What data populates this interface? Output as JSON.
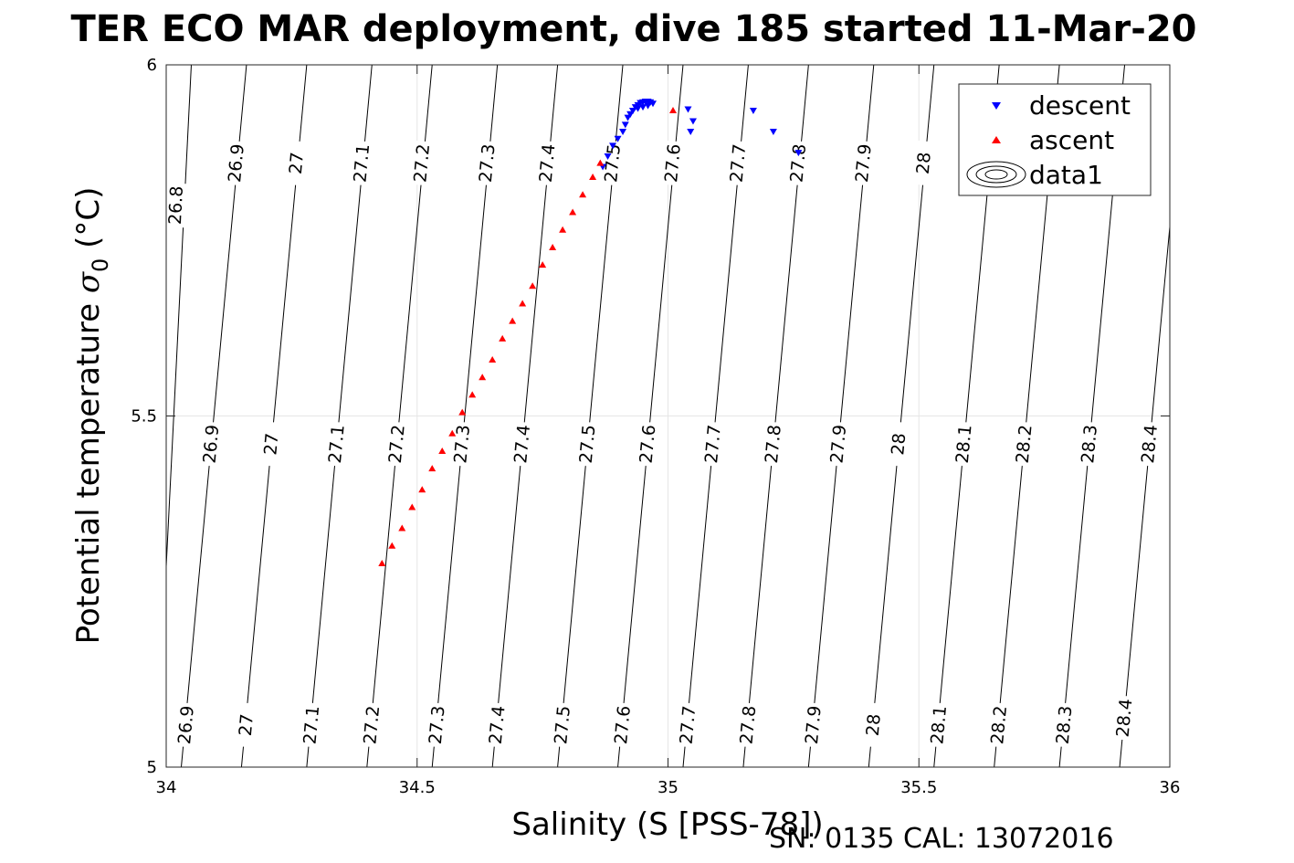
{
  "chart_data": {
    "type": "scatter",
    "title": "TER ECO MAR deployment, dive 185 started 11-Mar-20",
    "xlabel": "Salinity (S [PSS-78])",
    "ylabel": "Potential temperature σ 0 (°C)",
    "ylabel_main": "Potential temperature ",
    "ylabel_sigma": "σ",
    "ylabel_sub": "0",
    "ylabel_unit": " (°C)",
    "footer": "SN: 0135  CAL: 13072016",
    "xlim": [
      34,
      36
    ],
    "ylim": [
      5,
      6
    ],
    "xticks": [
      34,
      34.5,
      35,
      35.5,
      36
    ],
    "xtick_labels": [
      "34",
      "34.5",
      "35",
      "35.5",
      "36"
    ],
    "yticks": [
      5,
      5.5,
      6
    ],
    "ytick_labels": [
      "5",
      "5.5",
      "6"
    ],
    "grid": true,
    "legend_position": "top-right",
    "legend": [
      "descent",
      "ascent",
      "data1"
    ],
    "colors": {
      "descent": "#0000ff",
      "ascent": "#ff0000",
      "contour": "#000000",
      "grid": "#e6e6e6"
    },
    "contours": [
      {
        "level": 26.8,
        "s_bottom": 33.98,
        "s_top": 34.05,
        "labels": [
          {
            "s": 34.02,
            "t": 5.8,
            "text": "26.8"
          }
        ]
      },
      {
        "level": 26.9,
        "s_bottom": 34.03,
        "s_top": 34.16,
        "labels": [
          {
            "s": 34.04,
            "t": 5.06,
            "text": "26.9"
          },
          {
            "s": 34.09,
            "t": 5.46,
            "text": "26.9"
          },
          {
            "s": 34.14,
            "t": 5.86,
            "text": "26.9"
          }
        ]
      },
      {
        "level": 27.0,
        "s_bottom": 34.15,
        "s_top": 34.28,
        "labels": [
          {
            "s": 34.16,
            "t": 5.06,
            "text": "27"
          },
          {
            "s": 34.21,
            "t": 5.46,
            "text": "27"
          },
          {
            "s": 34.26,
            "t": 5.86,
            "text": "27"
          }
        ]
      },
      {
        "level": 27.1,
        "s_bottom": 34.28,
        "s_top": 34.41,
        "labels": [
          {
            "s": 34.29,
            "t": 5.06,
            "text": "27.1"
          },
          {
            "s": 34.34,
            "t": 5.46,
            "text": "27.1"
          },
          {
            "s": 34.39,
            "t": 5.86,
            "text": "27.1"
          }
        ]
      },
      {
        "level": 27.2,
        "s_bottom": 34.4,
        "s_top": 34.53,
        "labels": [
          {
            "s": 34.41,
            "t": 5.06,
            "text": "27.2"
          },
          {
            "s": 34.46,
            "t": 5.46,
            "text": "27.2"
          },
          {
            "s": 34.51,
            "t": 5.86,
            "text": "27.2"
          }
        ]
      },
      {
        "level": 27.3,
        "s_bottom": 34.53,
        "s_top": 34.66,
        "labels": [
          {
            "s": 34.54,
            "t": 5.06,
            "text": "27.3"
          },
          {
            "s": 34.59,
            "t": 5.46,
            "text": "27.3"
          },
          {
            "s": 34.64,
            "t": 5.86,
            "text": "27.3"
          }
        ]
      },
      {
        "level": 27.4,
        "s_bottom": 34.65,
        "s_top": 34.78,
        "labels": [
          {
            "s": 34.66,
            "t": 5.06,
            "text": "27.4"
          },
          {
            "s": 34.71,
            "t": 5.46,
            "text": "27.4"
          },
          {
            "s": 34.76,
            "t": 5.86,
            "text": "27.4"
          }
        ]
      },
      {
        "level": 27.5,
        "s_bottom": 34.78,
        "s_top": 34.91,
        "labels": [
          {
            "s": 34.79,
            "t": 5.06,
            "text": "27.5"
          },
          {
            "s": 34.84,
            "t": 5.46,
            "text": "27.5"
          },
          {
            "s": 34.89,
            "t": 5.86,
            "text": "27.5"
          }
        ]
      },
      {
        "level": 27.6,
        "s_bottom": 34.9,
        "s_top": 35.03,
        "labels": [
          {
            "s": 34.91,
            "t": 5.06,
            "text": "27.6"
          },
          {
            "s": 34.96,
            "t": 5.46,
            "text": "27.6"
          },
          {
            "s": 35.01,
            "t": 5.86,
            "text": "27.6"
          }
        ]
      },
      {
        "level": 27.7,
        "s_bottom": 35.03,
        "s_top": 35.16,
        "labels": [
          {
            "s": 35.04,
            "t": 5.06,
            "text": "27.7"
          },
          {
            "s": 35.09,
            "t": 5.46,
            "text": "27.7"
          },
          {
            "s": 35.14,
            "t": 5.86,
            "text": "27.7"
          }
        ]
      },
      {
        "level": 27.8,
        "s_bottom": 35.15,
        "s_top": 35.28,
        "labels": [
          {
            "s": 35.16,
            "t": 5.06,
            "text": "27.8"
          },
          {
            "s": 35.21,
            "t": 5.46,
            "text": "27.8"
          },
          {
            "s": 35.26,
            "t": 5.86,
            "text": "27.8"
          }
        ]
      },
      {
        "level": 27.9,
        "s_bottom": 35.28,
        "s_top": 35.41,
        "labels": [
          {
            "s": 35.29,
            "t": 5.06,
            "text": "27.9"
          },
          {
            "s": 35.34,
            "t": 5.46,
            "text": "27.9"
          },
          {
            "s": 35.39,
            "t": 5.86,
            "text": "27.9"
          }
        ]
      },
      {
        "level": 28.0,
        "s_bottom": 35.4,
        "s_top": 35.53,
        "labels": [
          {
            "s": 35.41,
            "t": 5.06,
            "text": "28"
          },
          {
            "s": 35.46,
            "t": 5.46,
            "text": "28"
          },
          {
            "s": 35.51,
            "t": 5.86,
            "text": "28"
          }
        ]
      },
      {
        "level": 28.1,
        "s_bottom": 35.53,
        "s_top": 35.66,
        "labels": [
          {
            "s": 35.54,
            "t": 5.06,
            "text": "28.1"
          },
          {
            "s": 35.59,
            "t": 5.46,
            "text": "28.1"
          }
        ]
      },
      {
        "level": 28.2,
        "s_bottom": 35.65,
        "s_top": 35.78,
        "labels": [
          {
            "s": 35.66,
            "t": 5.06,
            "text": "28.2"
          },
          {
            "s": 35.71,
            "t": 5.46,
            "text": "28.2"
          }
        ]
      },
      {
        "level": 28.3,
        "s_bottom": 35.78,
        "s_top": 35.91,
        "labels": [
          {
            "s": 35.79,
            "t": 5.06,
            "text": "28.3"
          },
          {
            "s": 35.84,
            "t": 5.46,
            "text": "28.3"
          }
        ]
      },
      {
        "level": 28.4,
        "s_bottom": 35.9,
        "s_top": 36.03,
        "labels": [
          {
            "s": 35.91,
            "t": 5.07,
            "text": "28.4"
          },
          {
            "s": 35.96,
            "t": 5.46,
            "text": "28.4"
          }
        ]
      }
    ],
    "series": [
      {
        "name": "descent",
        "marker": "triangle-down",
        "x": [
          34.87,
          34.88,
          34.89,
          34.9,
          34.91,
          34.915,
          34.92,
          34.925,
          34.93,
          34.935,
          34.94,
          34.945,
          34.95,
          34.955,
          34.96,
          34.965,
          34.97,
          34.925,
          34.93,
          34.94,
          34.95,
          34.96,
          35.04,
          35.045,
          35.05,
          35.17,
          35.21,
          35.26
        ],
        "y": [
          5.855,
          5.87,
          5.885,
          5.895,
          5.905,
          5.915,
          5.925,
          5.93,
          5.935,
          5.94,
          5.943,
          5.946,
          5.947,
          5.948,
          5.948,
          5.947,
          5.945,
          5.93,
          5.935,
          5.938,
          5.94,
          5.942,
          5.937,
          5.905,
          5.92,
          5.935,
          5.905,
          5.875
        ]
      },
      {
        "name": "ascent",
        "marker": "triangle-up",
        "x": [
          34.43,
          34.45,
          34.47,
          34.49,
          34.51,
          34.53,
          34.55,
          34.57,
          34.59,
          34.61,
          34.63,
          34.65,
          34.67,
          34.69,
          34.71,
          34.73,
          34.75,
          34.77,
          34.79,
          34.81,
          34.83,
          34.85,
          34.865,
          35.01
        ],
        "y": [
          5.29,
          5.315,
          5.34,
          5.37,
          5.395,
          5.425,
          5.45,
          5.475,
          5.505,
          5.53,
          5.555,
          5.58,
          5.61,
          5.635,
          5.66,
          5.685,
          5.715,
          5.74,
          5.765,
          5.79,
          5.815,
          5.84,
          5.86,
          5.935
        ]
      }
    ]
  }
}
